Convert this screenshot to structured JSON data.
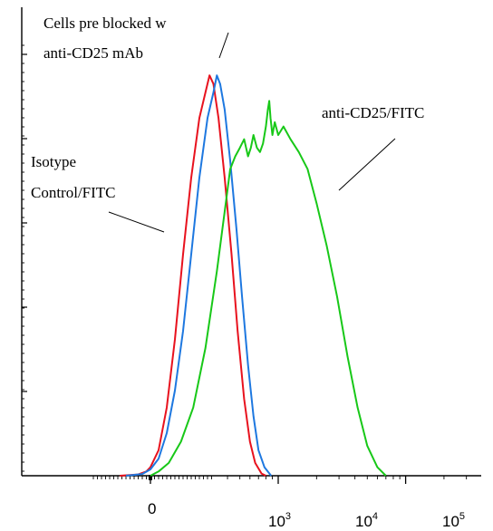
{
  "chart_data": {
    "type": "line",
    "title": "",
    "xlabel": "",
    "ylabel": "",
    "x_scale": "biexponential",
    "xlim": [
      -300,
      250000
    ],
    "ylim": [
      0,
      100
    ],
    "x_ticks": [
      {
        "value": 0,
        "base": "0",
        "exp": ""
      },
      {
        "value": 1000,
        "base": "10",
        "exp": "3"
      },
      {
        "value": 10000,
        "base": "10",
        "exp": "4"
      },
      {
        "value": 100000,
        "base": "10",
        "exp": "5"
      }
    ],
    "grid": false,
    "legend": "none",
    "annotations": [
      {
        "id": "pre-blocked",
        "lines": [
          "Cells pre blocked w",
          "anti-CD25 mAb"
        ]
      },
      {
        "id": "isotype",
        "lines": [
          "Isotype",
          "Control/FITC"
        ]
      },
      {
        "id": "anti-cd25",
        "lines": [
          "anti-CD25/FITC"
        ]
      }
    ],
    "series": [
      {
        "color": "#e8121e",
        "points": [
          [
            -150,
            0
          ],
          [
            -60,
            0.3
          ],
          [
            -20,
            1
          ],
          [
            0,
            2
          ],
          [
            40,
            6
          ],
          [
            80,
            16
          ],
          [
            120,
            32
          ],
          [
            160,
            52
          ],
          [
            200,
            70
          ],
          [
            240,
            84
          ],
          [
            270,
            90
          ],
          [
            290,
            94
          ],
          [
            310,
            92
          ],
          [
            340,
            84
          ],
          [
            380,
            70
          ],
          [
            430,
            52
          ],
          [
            480,
            34
          ],
          [
            540,
            18
          ],
          [
            600,
            8
          ],
          [
            660,
            3
          ],
          [
            740,
            0.5
          ],
          [
            800,
            0
          ]
        ]
      },
      {
        "color": "#1e78e0",
        "points": [
          [
            -120,
            0
          ],
          [
            -40,
            0.4
          ],
          [
            0,
            1.5
          ],
          [
            40,
            4
          ],
          [
            80,
            10
          ],
          [
            120,
            20
          ],
          [
            160,
            34
          ],
          [
            200,
            52
          ],
          [
            240,
            70
          ],
          [
            280,
            84
          ],
          [
            310,
            90
          ],
          [
            330,
            94
          ],
          [
            350,
            92
          ],
          [
            380,
            86
          ],
          [
            420,
            74
          ],
          [
            470,
            58
          ],
          [
            520,
            42
          ],
          [
            580,
            26
          ],
          [
            640,
            14
          ],
          [
            700,
            6
          ],
          [
            780,
            2
          ],
          [
            880,
            0
          ]
        ]
      },
      {
        "color": "#18c818",
        "points": [
          [
            0,
            0
          ],
          [
            40,
            1
          ],
          [
            90,
            3
          ],
          [
            150,
            8
          ],
          [
            210,
            16
          ],
          [
            270,
            30
          ],
          [
            330,
            48
          ],
          [
            380,
            62
          ],
          [
            420,
            72
          ],
          [
            460,
            75
          ],
          [
            500,
            77
          ],
          [
            540,
            79
          ],
          [
            580,
            75
          ],
          [
            610,
            77
          ],
          [
            640,
            80
          ],
          [
            680,
            77
          ],
          [
            720,
            76
          ],
          [
            760,
            78
          ],
          [
            800,
            82
          ],
          [
            830,
            86
          ],
          [
            850,
            88
          ],
          [
            870,
            84
          ],
          [
            900,
            80
          ],
          [
            940,
            83
          ],
          [
            1000,
            80
          ],
          [
            1100,
            82
          ],
          [
            1250,
            79
          ],
          [
            1450,
            76
          ],
          [
            1700,
            72
          ],
          [
            2000,
            64
          ],
          [
            2400,
            54
          ],
          [
            2900,
            42
          ],
          [
            3500,
            28
          ],
          [
            4200,
            16
          ],
          [
            5000,
            7
          ],
          [
            6000,
            2
          ],
          [
            7000,
            0
          ]
        ]
      }
    ]
  }
}
